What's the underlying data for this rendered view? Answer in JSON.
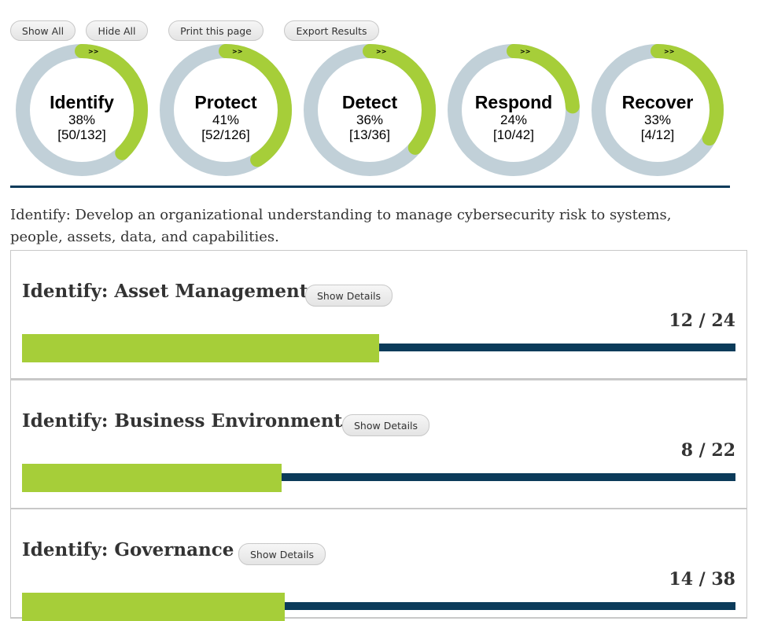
{
  "toolbar": {
    "show_all": "Show All",
    "hide_all": "Hide All",
    "print": "Print this page",
    "export": "Export Results"
  },
  "colors": {
    "progress": "#a6ce39",
    "track": "#c1d0d8",
    "bar_track": "#0b3b5a"
  },
  "donuts": [
    {
      "name": "Identify",
      "percent": "38%",
      "count": "[50/132]",
      "fraction": 0.38,
      "arrow": ">>"
    },
    {
      "name": "Protect",
      "percent": "41%",
      "count": "[52/126]",
      "fraction": 0.41,
      "arrow": ">>"
    },
    {
      "name": "Detect",
      "percent": "36%",
      "count": "[13/36]",
      "fraction": 0.36,
      "arrow": ">>"
    },
    {
      "name": "Respond",
      "percent": "24%",
      "count": "[10/42]",
      "fraction": 0.24,
      "arrow": ">>"
    },
    {
      "name": "Recover",
      "percent": "33%",
      "count": "[4/12]",
      "fraction": 0.33,
      "arrow": ">>"
    }
  ],
  "description": "Identify: Develop an organizational understanding to manage cybersecurity risk to systems, people, assets, data, and capabilities.",
  "categories": [
    {
      "title": "Identify: Asset Management",
      "button": "Show Details",
      "score": "12 / 24",
      "done": 12,
      "total": 24
    },
    {
      "title": "Identify: Business Environment",
      "button": "Show Details",
      "score": "8 / 22",
      "done": 8,
      "total": 22
    },
    {
      "title": "Identify: Governance",
      "button": "Show Details",
      "score": "14 / 38",
      "done": 14,
      "total": 38
    }
  ]
}
